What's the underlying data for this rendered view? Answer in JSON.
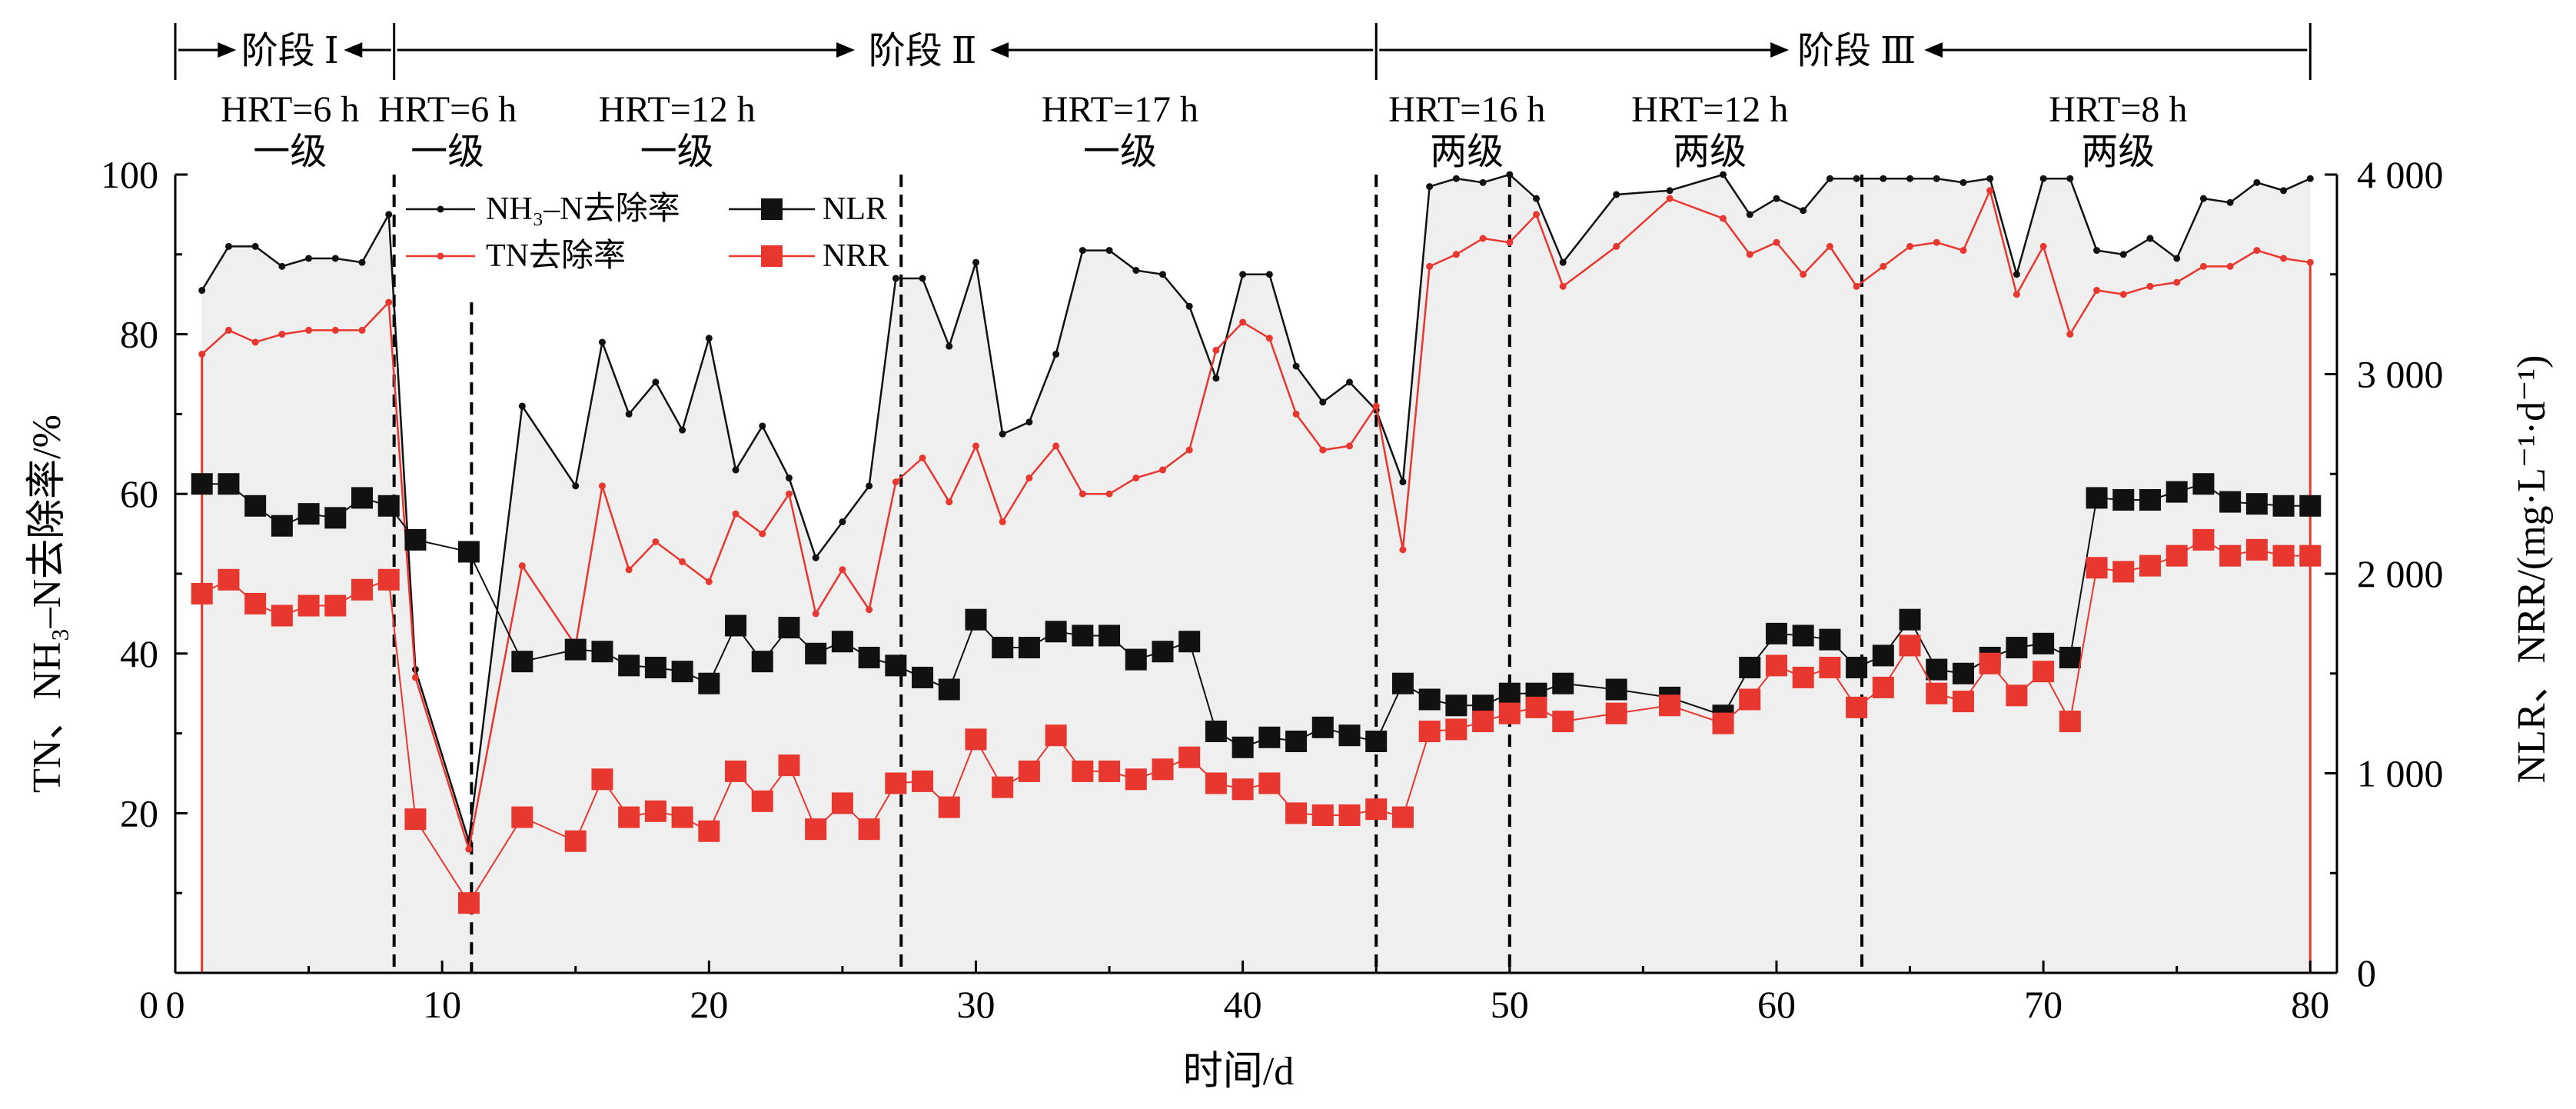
{
  "chart_data": {
    "type": "line",
    "xlabel": "时间/d",
    "ylabel_left": "TN、NH₃–N去除率/%",
    "ylabel_right": "NLR、NRR/(mg·L⁻¹·d⁻¹)",
    "xlim": [
      0,
      81
    ],
    "ylim_left": [
      0,
      100
    ],
    "ylim_right": [
      0,
      4000
    ],
    "x_ticks": [
      0,
      10,
      20,
      30,
      40,
      50,
      60,
      70,
      80
    ],
    "x_tick_labels": [
      "0",
      "10",
      "20",
      "30",
      "40",
      "50",
      "60",
      "70",
      "80"
    ],
    "y_left_ticks": [
      20,
      40,
      60,
      80,
      100
    ],
    "y_left_tick_labels": [
      "20",
      "40",
      "60",
      "80",
      "100"
    ],
    "y_right_ticks": [
      0,
      1000,
      2000,
      3000,
      4000
    ],
    "y_right_tick_labels": [
      "0",
      "1 000",
      "2 000",
      "3 000",
      "4 000"
    ],
    "colors": {
      "black": "#111111",
      "red": "#e8372f",
      "fill": "#efefef"
    },
    "stages": [
      {
        "label": "阶段 Ⅰ",
        "x_start": 0,
        "x_end": 8.2,
        "label_x": 4.3
      },
      {
        "label": "阶段 Ⅱ",
        "x_start": 8.2,
        "x_end": 45,
        "label_x": 28
      },
      {
        "label": "阶段 Ⅲ",
        "x_start": 45,
        "x_end": 80,
        "label_x": 63
      }
    ],
    "stage_bounds": [
      0,
      8.2,
      45,
      80
    ],
    "conditions": [
      {
        "hrt": "HRT=6 h",
        "level": "一级",
        "x": 4.3
      },
      {
        "hrt": "HRT=6 h",
        "level": "一级",
        "x": 10.2
      },
      {
        "hrt": "HRT=12 h",
        "level": "一级",
        "x": 18.8
      },
      {
        "hrt": "HRT=17 h",
        "level": "一级",
        "x": 35.4
      },
      {
        "hrt": "HRT=16 h",
        "level": "两级",
        "x": 48.4
      },
      {
        "hrt": "HRT=12 h",
        "level": "两级",
        "x": 57.5
      },
      {
        "hrt": "HRT=8 h",
        "level": "两级",
        "x": 72.8
      }
    ],
    "dividers": [
      8.2,
      11.1,
      27.2,
      45,
      50,
      63.2
    ],
    "divider_tops": [
      100,
      84,
      100,
      100,
      100,
      100
    ],
    "legend": {
      "nh3": "NH₃–N去除率",
      "nlr": "NLR",
      "tn": "TN去除率",
      "nrr": "NRR"
    },
    "series": [
      {
        "name": "NH₃–N去除率",
        "axis": "left",
        "x": [
          1,
          2,
          3,
          4,
          5,
          6,
          7,
          8,
          9,
          11,
          13,
          15,
          16,
          17,
          18,
          19,
          20,
          21,
          22,
          23,
          24,
          25,
          26,
          27,
          28,
          29,
          30,
          31,
          32,
          33,
          34,
          35,
          36,
          37,
          38,
          39,
          40,
          41,
          42,
          43,
          44,
          45,
          46,
          47,
          48,
          49,
          50,
          51,
          52,
          54,
          56,
          58,
          59,
          60,
          61,
          62,
          63,
          64,
          65,
          66,
          67,
          68,
          69,
          70,
          71,
          72,
          73,
          74,
          75,
          76,
          77,
          78,
          79,
          80
        ],
        "values": [
          85.5,
          91,
          91,
          88.5,
          89.5,
          89.5,
          89,
          95,
          38,
          16.5,
          71,
          61,
          79,
          70,
          74,
          68,
          79.5,
          63,
          68.5,
          62,
          52,
          56.5,
          61,
          87,
          87,
          78.5,
          89,
          67.5,
          69,
          77.5,
          90.5,
          90.5,
          88,
          87.5,
          83.5,
          74.5,
          87.5,
          87.5,
          76,
          71.5,
          74,
          70.5,
          61.5,
          98.5,
          99.5,
          99,
          100,
          97,
          89,
          97.5,
          98,
          100,
          95,
          97,
          95.5,
          99.5,
          99.5,
          99.5,
          99.5,
          99.5,
          99,
          99.5,
          87.5,
          99.5,
          99.5,
          90.5,
          90,
          92,
          89.5,
          97,
          96.5,
          99,
          98,
          99.5
        ]
      },
      {
        "name": "TN去除率",
        "axis": "left",
        "x": [
          1,
          2,
          3,
          4,
          5,
          6,
          7,
          8,
          9,
          11,
          13,
          15,
          16,
          17,
          18,
          19,
          20,
          21,
          22,
          23,
          24,
          25,
          26,
          27,
          28,
          29,
          30,
          31,
          32,
          33,
          34,
          35,
          36,
          37,
          38,
          39,
          40,
          41,
          42,
          43,
          44,
          45,
          46,
          47,
          48,
          49,
          50,
          51,
          52,
          54,
          56,
          58,
          59,
          60,
          61,
          62,
          63,
          64,
          65,
          66,
          67,
          68,
          69,
          70,
          71,
          72,
          73,
          74,
          75,
          76,
          77,
          78,
          79,
          80
        ],
        "values": [
          77.5,
          80.5,
          79,
          80,
          80.5,
          80.5,
          80.5,
          84,
          37,
          15.5,
          51,
          41,
          61,
          50.5,
          54,
          51.5,
          49,
          57.5,
          55,
          60,
          45,
          50.5,
          45.5,
          61.5,
          64.5,
          59,
          66,
          56.5,
          62,
          66,
          60,
          60,
          62,
          63,
          65.5,
          78,
          81.5,
          79.5,
          70,
          65.5,
          66,
          71,
          53,
          88.5,
          90,
          92,
          91.5,
          95,
          86,
          91,
          97,
          94.5,
          90,
          91.5,
          87.5,
          91,
          86,
          88.5,
          91,
          91.5,
          90.5,
          98,
          85,
          91,
          80,
          85.5,
          85,
          86,
          86.5,
          88.5,
          88.5,
          90.5,
          89.5,
          89
        ]
      },
      {
        "name": "NLR",
        "axis": "right",
        "x": [
          1,
          2,
          3,
          4,
          5,
          6,
          7,
          8,
          9,
          11,
          13,
          15,
          16,
          17,
          18,
          19,
          20,
          21,
          22,
          23,
          24,
          25,
          26,
          27,
          28,
          29,
          30,
          31,
          32,
          33,
          34,
          35,
          36,
          37,
          38,
          39,
          40,
          41,
          42,
          43,
          44,
          45,
          46,
          47,
          48,
          49,
          50,
          51,
          52,
          54,
          56,
          58,
          59,
          60,
          61,
          62,
          63,
          64,
          65,
          66,
          67,
          68,
          69,
          70,
          71,
          72,
          73,
          74,
          75,
          76,
          77,
          78,
          79,
          80
        ],
        "values": [
          2450,
          2450,
          2340,
          2240,
          2300,
          2280,
          2380,
          2340,
          2170,
          2110,
          1560,
          1620,
          1610,
          1540,
          1530,
          1510,
          1450,
          1740,
          1560,
          1730,
          1600,
          1660,
          1580,
          1540,
          1480,
          1420,
          1770,
          1630,
          1630,
          1710,
          1690,
          1690,
          1570,
          1610,
          1660,
          1210,
          1130,
          1180,
          1160,
          1230,
          1190,
          1160,
          1450,
          1370,
          1340,
          1340,
          1400,
          1400,
          1450,
          1420,
          1380,
          1290,
          1530,
          1700,
          1690,
          1670,
          1530,
          1590,
          1770,
          1520,
          1500,
          1580,
          1630,
          1650,
          1580,
          2380,
          2370,
          2370,
          2410,
          2450,
          2360,
          2350,
          2340,
          2340
        ]
      },
      {
        "name": "NRR",
        "axis": "right",
        "x": [
          1,
          2,
          3,
          4,
          5,
          6,
          7,
          8,
          9,
          11,
          13,
          15,
          16,
          17,
          18,
          19,
          20,
          21,
          22,
          23,
          24,
          25,
          26,
          27,
          28,
          29,
          30,
          31,
          32,
          33,
          34,
          35,
          36,
          37,
          38,
          39,
          40,
          41,
          42,
          43,
          44,
          45,
          46,
          47,
          48,
          49,
          50,
          51,
          52,
          54,
          56,
          58,
          59,
          60,
          61,
          62,
          63,
          64,
          65,
          66,
          67,
          68,
          69,
          70,
          71,
          72,
          73,
          74,
          75,
          76,
          77,
          78,
          79,
          80
        ],
        "values": [
          1900,
          1970,
          1850,
          1790,
          1840,
          1840,
          1920,
          1970,
          770,
          350,
          780,
          660,
          970,
          780,
          810,
          780,
          710,
          1010,
          860,
          1040,
          720,
          850,
          720,
          950,
          960,
          830,
          1170,
          930,
          1010,
          1190,
          1010,
          1010,
          970,
          1020,
          1080,
          950,
          920,
          950,
          800,
          790,
          790,
          820,
          780,
          1210,
          1220,
          1260,
          1300,
          1330,
          1260,
          1300,
          1340,
          1250,
          1370,
          1540,
          1480,
          1530,
          1330,
          1430,
          1640,
          1400,
          1360,
          1550,
          1390,
          1510,
          1260,
          2030,
          2010,
          2040,
          2090,
          2170,
          2090,
          2120,
          2090,
          2090
        ]
      }
    ]
  }
}
